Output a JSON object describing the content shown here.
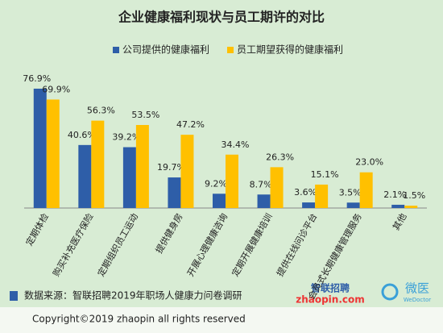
{
  "chart_data": {
    "type": "bar",
    "title": "企业健康福利现状与员工期许的对比",
    "categories": [
      "定期体检",
      "购买补充医疗保险",
      "定期组织员工运动",
      "提供健身房",
      "开展心理健康咨询",
      "定期开展健康培训",
      "提供在线问诊平台",
      "会员式长期健康管理服务",
      "其他"
    ],
    "series": [
      {
        "name": "公司提供的健康福利",
        "color": "#2e5ea8",
        "values": [
          76.9,
          40.6,
          39.2,
          19.7,
          9.2,
          8.7,
          3.6,
          3.5,
          2.1
        ],
        "value_labels": [
          "76.9%",
          "40.6%",
          "39.2%",
          "19.7%",
          "9.2%",
          "8.7%",
          "3.6%",
          "3.5%",
          "2.1%"
        ]
      },
      {
        "name": "员工期望获得的健康福利",
        "color": "#ffc000",
        "values": [
          69.9,
          56.3,
          53.5,
          47.2,
          34.4,
          26.3,
          15.1,
          23.0,
          1.5
        ],
        "value_labels": [
          "69.9%",
          "56.3%",
          "53.5%",
          "47.2%",
          "34.4%",
          "26.3%",
          "15.1%",
          "23.0%",
          "1.5%"
        ]
      }
    ],
    "ylim": [
      0,
      80
    ],
    "legend": "top",
    "source": "数据来源：智联招聘2019年职场人健康力问卷调研",
    "copyright": "Copyright©2019 zhaopin all rights reserved",
    "logos": [
      "智联招聘",
      "zhaopin.com",
      "微医",
      "WeDoctor"
    ]
  }
}
